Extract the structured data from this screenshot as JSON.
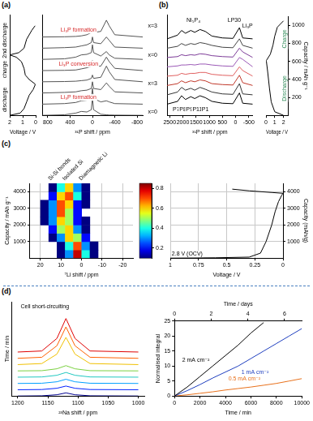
{
  "chart_data": [
    {
      "panel": "(a)",
      "type": "line",
      "x_label": "Voltage / V",
      "xlim": [
        2,
        0
      ],
      "xticks": [
        2,
        1,
        0
      ],
      "ylim": [
        0,
        9
      ],
      "tick_labels": "x",
      "grid": false,
      "series": [
        {
          "color": "#000000",
          "x": [
            2.0,
            1.2,
            0.9,
            0.7,
            0.5,
            0.2,
            0.05,
            0.05,
            0.5,
            0.8,
            0.9,
            1.1,
            1.5,
            2.0,
            1.3,
            0.9,
            0.7,
            0.3,
            0.05
          ],
          "values": [
            0,
            0.2,
            0.6,
            1.2,
            1.8,
            2.3,
            2.7,
            2.8,
            3.2,
            3.6,
            4.2,
            4.8,
            5.2,
            5.4,
            5.6,
            6.0,
            6.8,
            7.6,
            8.0
          ]
        }
      ],
      "annotations": [
        {
          "text": "discharge",
          "x": 2.35,
          "y": 1.4
        },
        {
          "text": "charge",
          "x": 2.35,
          "y": 4.1
        },
        {
          "text": "2nd discharge",
          "x": 2.35,
          "y": 6.7
        }
      ]
    },
    {
      "type": "line",
      "x_label": "³¹P shift / ppm",
      "xlim": [
        900,
        -900
      ],
      "xticks": [
        800,
        400,
        0,
        -400,
        -800
      ],
      "ylim": [
        0,
        9
      ],
      "tick_labels": "x",
      "grid": false,
      "x": [
        900,
        500,
        300,
        200,
        100,
        20,
        0,
        -20,
        -150,
        -250,
        -300,
        -400,
        -900
      ],
      "series": [
        {
          "color": "#555555",
          "values": [
            0,
            0.05,
            0.2,
            0.35,
            0.3,
            0.5,
            1.6,
            0.5,
            0.1,
            0.05,
            0.03,
            0.02,
            0
          ]
        },
        {
          "color": "#555555",
          "values": [
            1,
            1.05,
            1.15,
            1.3,
            1.35,
            1.5,
            2.4,
            1.5,
            1.2,
            1.3,
            1.2,
            1.05,
            1
          ]
        },
        {
          "color": "#555555",
          "values": [
            2,
            2.05,
            2.1,
            2.2,
            2.25,
            2.4,
            3.0,
            2.4,
            2.3,
            2.9,
            2.6,
            2.1,
            2
          ]
        },
        {
          "color": "#555555",
          "values": [
            3,
            3.02,
            3.05,
            3.1,
            3.15,
            3.3,
            3.6,
            3.3,
            3.4,
            4.4,
            3.9,
            3.2,
            3
          ]
        },
        {
          "color": "#555555",
          "values": [
            4,
            4.02,
            4.05,
            4.15,
            4.25,
            4.4,
            4.9,
            4.4,
            4.4,
            5.2,
            4.8,
            4.2,
            4
          ]
        },
        {
          "color": "#555555",
          "values": [
            5,
            5.05,
            5.2,
            5.4,
            5.45,
            5.6,
            6.3,
            5.6,
            5.3,
            5.7,
            5.4,
            5.1,
            5
          ]
        },
        {
          "color": "#555555",
          "values": [
            6,
            6.05,
            6.1,
            6.2,
            6.3,
            6.5,
            7.0,
            6.5,
            6.4,
            7.0,
            6.7,
            6.1,
            6
          ]
        },
        {
          "color": "#555555",
          "values": [
            7,
            7.02,
            7.05,
            7.1,
            7.2,
            7.4,
            7.8,
            7.4,
            7.5,
            8.5,
            8.0,
            7.2,
            7
          ]
        }
      ],
      "annotations": [
        {
          "text": "Li₃P formation",
          "x": 250,
          "y": 1.6,
          "color": "#d62728"
        },
        {
          "text": "Li₃P conversion",
          "x": 250,
          "y": 4.6,
          "color": "#d62728"
        },
        {
          "text": "Li₃P formation",
          "x": 250,
          "y": 7.6,
          "color": "#d62728"
        },
        {
          "text": "x=0",
          "x": -950,
          "y": 0.3
        },
        {
          "text": "x=3",
          "x": -950,
          "y": 2.8
        },
        {
          "text": "x=0",
          "x": -950,
          "y": 5.4
        },
        {
          "text": "x=3",
          "x": -950,
          "y": 8.0
        }
      ]
    },
    {
      "panel": "(b)",
      "type": "line",
      "x_label": "³¹P shift / ppm",
      "xlim": [
        2600,
        -650
      ],
      "xticks": [
        2500,
        2000,
        1500,
        1000,
        500,
        0,
        -500
      ],
      "ylim": [
        -1.2,
        9.6
      ],
      "tick_labels": "x",
      "grid": false,
      "x": [
        2600,
        2200,
        2050,
        1900,
        1700,
        1550,
        1350,
        1150,
        900,
        500,
        100,
        -145,
        -270,
        -650
      ],
      "series": [
        {
          "color": "#000000",
          "values": [
            0,
            0.3,
            0.9,
            0.5,
            0.8,
            0.6,
            0.9,
            0.7,
            0.3,
            0.1,
            0.05,
            1.2,
            0.1,
            0
          ]
        },
        {
          "color": "#333333",
          "values": [
            1,
            1.3,
            1.8,
            1.5,
            1.7,
            1.5,
            1.8,
            1.6,
            1.3,
            1.1,
            1.05,
            2.2,
            1.1,
            1
          ]
        },
        {
          "color": "#c0392b",
          "values": [
            2,
            2.2,
            2.5,
            2.3,
            2.5,
            2.4,
            2.6,
            2.5,
            2.2,
            2.1,
            2.05,
            3.1,
            2.3,
            2
          ]
        },
        {
          "color": "#e06060",
          "values": [
            3,
            3.1,
            3.3,
            3.2,
            3.3,
            3.3,
            3.4,
            3.4,
            3.2,
            3.1,
            3.05,
            4.0,
            3.6,
            3
          ]
        },
        {
          "color": "#9b59b6",
          "values": [
            4,
            4.1,
            4.2,
            4.2,
            4.25,
            4.2,
            4.3,
            4.3,
            4.2,
            4.1,
            4.05,
            5.0,
            4.8,
            4
          ]
        },
        {
          "color": "#7d3c98",
          "values": [
            5,
            5.1,
            5.3,
            5.2,
            5.3,
            5.25,
            5.4,
            5.35,
            5.2,
            5.1,
            5.05,
            6.0,
            5.6,
            5
          ]
        },
        {
          "color": "#444444",
          "values": [
            6,
            6.2,
            6.5,
            6.3,
            6.5,
            6.4,
            6.6,
            6.5,
            6.3,
            6.1,
            6.05,
            7.0,
            6.3,
            6
          ]
        },
        {
          "color": "#000000",
          "values": [
            7,
            7.4,
            7.9,
            7.6,
            7.9,
            7.7,
            8.0,
            7.8,
            7.3,
            7.1,
            7.05,
            8.2,
            7.1,
            7
          ]
        }
      ],
      "annotations": [
        {
          "text": "Ni₅P₄",
          "x": 1600,
          "y": 9.0
        },
        {
          "text": "LP30",
          "x": 50,
          "y": 9.0
        },
        {
          "text": "Li₃P",
          "x": -450,
          "y": 8.4
        },
        {
          "text": "P7",
          "x": 2250,
          "y": -0.6
        },
        {
          "text": "P8",
          "x": 2000,
          "y": -0.6
        },
        {
          "text": "P9",
          "x": 1750,
          "y": -0.6
        },
        {
          "text": "P11",
          "x": 1450,
          "y": -0.6
        },
        {
          "text": "P1",
          "x": 1150,
          "y": -0.6
        }
      ]
    },
    {
      "type": "line",
      "x_label": "Voltage / V",
      "y_label": "Capacity / mAh g⁻¹",
      "xlim": [
        0,
        2.5
      ],
      "xticks": [
        0,
        1,
        2
      ],
      "ylim": [
        0,
        1100
      ],
      "yticks": [
        200,
        400,
        600,
        800,
        1000
      ],
      "grid": false,
      "series": [
        {
          "color": "#000000",
          "x": [
            2.0,
            1.0,
            0.6,
            0.4,
            0.2,
            0.05,
            0.05,
            0.5,
            0.8,
            1.0,
            1.3,
            2.0
          ],
          "values": [
            0,
            40,
            150,
            300,
            480,
            600,
            610,
            680,
            780,
            880,
            980,
            1050
          ]
        }
      ],
      "annotations": [
        {
          "text": "Charge",
          "x": 2.15,
          "y": 850,
          "color": "#2e8b57"
        },
        {
          "text": "Discharge",
          "x": 2.15,
          "y": 300,
          "color": "#2e8b57"
        }
      ]
    },
    {
      "panel": "(c)",
      "type": "heatmap",
      "x_label": "⁷Li shift / ppm",
      "y_label": "Capacity / mAh g⁻¹",
      "xlim": [
        25,
        -25
      ],
      "xticks": [
        20,
        10,
        0,
        -10,
        -20
      ],
      "ylim": [
        0,
        4500
      ],
      "yticks": [
        1000,
        2000,
        3000,
        4000
      ],
      "grid": true,
      "x": [
        22,
        18,
        14,
        10,
        6,
        2,
        -2,
        -6,
        -10,
        -14,
        -18,
        -22
      ],
      "y": [
        250,
        750,
        1250,
        1750,
        2250,
        2750,
        3250,
        3750,
        4250
      ],
      "cells": [
        [
          0,
          0,
          0,
          0.1,
          0.3,
          0.8,
          0.4,
          0.1,
          0,
          0,
          0,
          0
        ],
        [
          0,
          0,
          0,
          0.1,
          0.4,
          0.7,
          0.3,
          0.1,
          0,
          0,
          0,
          0
        ],
        [
          0,
          0,
          0.1,
          0.3,
          0.6,
          0.5,
          0.2,
          0,
          0,
          0,
          0,
          0
        ],
        [
          0,
          0,
          0.2,
          0.5,
          0.6,
          0.3,
          0.1,
          0,
          0,
          0,
          0,
          0
        ],
        [
          0,
          0.1,
          0.3,
          0.6,
          0.5,
          0.2,
          0.1,
          0,
          0,
          0,
          0,
          0
        ],
        [
          0,
          0.1,
          0.3,
          0.7,
          0.5,
          0.2,
          0,
          0,
          0,
          0,
          0,
          0
        ],
        [
          0,
          0.1,
          0.3,
          0.7,
          0.6,
          0.2,
          0.1,
          0,
          0,
          0,
          0,
          0
        ],
        [
          0,
          0,
          0.2,
          0.6,
          0.7,
          0.4,
          0.1,
          0,
          0,
          0,
          0,
          0
        ],
        [
          0,
          0,
          0.1,
          0.4,
          0.6,
          0.3,
          0.1,
          0,
          0,
          0,
          0,
          0
        ]
      ],
      "colorbar": {
        "lim": [
          0.1,
          0.85
        ],
        "ticks": [
          0.2,
          0.4,
          0.6,
          0.8
        ]
      },
      "annotations": [
        {
          "text": "Si-Si bonds",
          "x": 15,
          "y": 4500
        },
        {
          "text": "Isolated Si",
          "x": 8,
          "y": 4500
        },
        {
          "text": "Diamagnetic Li",
          "x": 0,
          "y": 4500
        }
      ]
    },
    {
      "type": "line",
      "x_label": "Voltage / V",
      "y_label": "Capacity (mAh/g)",
      "xlim": [
        1,
        0
      ],
      "xticks": [
        1,
        0.75,
        0.5,
        0.25,
        0
      ],
      "ylim": [
        0,
        4500
      ],
      "yticks": [
        1000,
        2000,
        3000,
        4000
      ],
      "grid": true,
      "series": [
        {
          "color": "#000000",
          "x": [
            1,
            0.6,
            0.3,
            0.2,
            0.15,
            0.1,
            0.07,
            0.04,
            0.01,
            0.0,
            0.1,
            0.3,
            0.45
          ],
          "values": [
            0,
            20,
            60,
            300,
            1000,
            2000,
            2800,
            3400,
            3800,
            3900,
            3950,
            4050,
            4150
          ]
        }
      ],
      "annotations": [
        {
          "text": "2.8 V (OCV)",
          "x": 0.85,
          "y": 250
        }
      ]
    },
    {
      "panel": "(d)",
      "type": "line",
      "x_label": "²³Na shift / ppm",
      "y_label": "Time / min",
      "xlim": [
        1210,
        990
      ],
      "xticks": [
        1200,
        1150,
        1100,
        1050,
        1000
      ],
      "ylim": [
        0,
        9
      ],
      "tick_labels": "x",
      "grid": false,
      "x": [
        1200,
        1160,
        1135,
        1120,
        1105,
        1080,
        1000
      ],
      "series": [
        {
          "color": "#00008f",
          "values": [
            0,
            0.02,
            0.12,
            0.3,
            0.12,
            0.02,
            0
          ]
        },
        {
          "color": "#0020ff",
          "values": [
            0.6,
            0.62,
            0.74,
            0.95,
            0.74,
            0.62,
            0.6
          ]
        },
        {
          "color": "#00a0ff",
          "values": [
            1.2,
            1.22,
            1.36,
            1.6,
            1.36,
            1.22,
            1.2
          ]
        },
        {
          "color": "#20c8c0",
          "values": [
            1.8,
            1.82,
            1.98,
            2.25,
            1.98,
            1.82,
            1.8
          ]
        },
        {
          "color": "#7ad040",
          "values": [
            2.4,
            2.42,
            2.6,
            2.9,
            2.6,
            2.42,
            2.4
          ]
        },
        {
          "color": "#f0c000",
          "values": [
            3.0,
            3.1,
            4.0,
            5.6,
            4.0,
            3.1,
            3.0
          ]
        },
        {
          "color": "#ff6000",
          "values": [
            3.6,
            3.7,
            4.8,
            6.6,
            4.8,
            3.7,
            3.6
          ]
        },
        {
          "color": "#df0000",
          "values": [
            4.2,
            4.3,
            5.5,
            7.4,
            5.5,
            4.3,
            4.2
          ]
        }
      ],
      "annotations": [
        {
          "text": "Cell short-circuiting",
          "x": 1155,
          "y": 8.5
        }
      ]
    },
    {
      "type": "line",
      "x_label": "Time / min",
      "x2_label": "Time / days",
      "y_label": "Normalised integral",
      "xlim": [
        0,
        10000
      ],
      "xticks": [
        0,
        2000,
        4000,
        6000,
        8000,
        10000
      ],
      "x2lim": [
        0,
        6.94
      ],
      "x2ticks": [
        0,
        2,
        4,
        6
      ],
      "ylim": [
        0,
        25
      ],
      "yticks": [
        0,
        5,
        10,
        15,
        20,
        25
      ],
      "grid": false,
      "series": [
        {
          "name": "2 mA cm⁻²",
          "color": "#000000",
          "x": [
            0,
            1000,
            2000,
            3000,
            4000,
            5000,
            6000,
            7000
          ],
          "values": [
            0,
            3,
            6.5,
            10,
            13.5,
            17,
            21,
            24.5
          ]
        },
        {
          "name": "1 mA cm⁻²",
          "color": "#1f3fbf",
          "x": [
            0,
            1000,
            2000,
            3000,
            4000,
            5000,
            6000,
            7000,
            8000,
            9000,
            10000
          ],
          "values": [
            0,
            1.8,
            3.8,
            6,
            8,
            10,
            12.5,
            15,
            17.5,
            20,
            22.5
          ]
        },
        {
          "name": "0.5 mA cm⁻²",
          "color": "#e8711c",
          "x": [
            0,
            1000,
            2000,
            3000,
            4000,
            5000,
            6000,
            7000,
            8000,
            9000,
            10000
          ],
          "values": [
            0,
            0.4,
            0.9,
            1.4,
            2,
            2.5,
            3,
            3.6,
            4.2,
            5,
            5.8
          ]
        }
      ]
    }
  ]
}
